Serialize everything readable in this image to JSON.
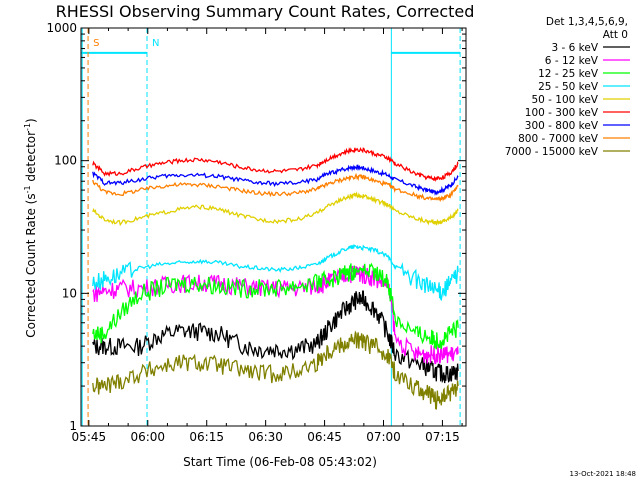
{
  "chart_data": {
    "type": "line",
    "title": "RHESSI Observing Summary Count Rates, Corrected",
    "xlabel": "Start Time (06-Feb-08 05:43:02)",
    "ylabel_main": "Corrected Count Rate (s",
    "ylabel_sup1": "-1",
    "ylabel_mid": " detector",
    "ylabel_sup2": "-1",
    "ylabel_end": ")",
    "y_scale": "log",
    "ylim": [
      1,
      1000
    ],
    "xlim_minutes": [
      0,
      98
    ],
    "x_ticks": [
      {
        "label": "05:45",
        "minute": 2
      },
      {
        "label": "06:00",
        "minute": 17
      },
      {
        "label": "06:15",
        "minute": 32
      },
      {
        "label": "06:30",
        "minute": 47
      },
      {
        "label": "06:45",
        "minute": 62
      },
      {
        "label": "07:00",
        "minute": 77
      },
      {
        "label": "07:15",
        "minute": 92
      }
    ],
    "y_ticks": [
      {
        "label": "1",
        "value": 1
      },
      {
        "label": "10",
        "value": 10
      },
      {
        "label": "100",
        "value": 100
      },
      {
        "label": "1000",
        "value": 1000
      }
    ],
    "legend": {
      "header1": "Det 1,3,4,5,6,9,",
      "header2": "Att 0",
      "placement": "right"
    },
    "markers": [
      {
        "label": "S",
        "minute": 1.8,
        "color": "#ff8000"
      },
      {
        "label": "N",
        "minute": 16.8,
        "color": "#00e5ff"
      }
    ],
    "night_bands": [
      {
        "start": 0,
        "end": 16.8,
        "level": 650
      },
      {
        "start": 79,
        "end": 96.5,
        "level": 650
      }
    ],
    "vertical_lines": [
      {
        "minute": 0.3,
        "color": "#00e5ff",
        "style": "solid"
      },
      {
        "minute": 16.8,
        "color": "#00e5ff",
        "style": "dashed"
      },
      {
        "minute": 79,
        "color": "#00e5ff",
        "style": "solid"
      },
      {
        "minute": 96.5,
        "color": "#00e5ff",
        "style": "dashed"
      },
      {
        "minute": 1.8,
        "color": "#ff8000",
        "style": "dashed"
      }
    ],
    "time_minutes": [
      3,
      6,
      10,
      15,
      20,
      25,
      30,
      35,
      40,
      45,
      50,
      55,
      60,
      62,
      65,
      68,
      70,
      72,
      75,
      78,
      80,
      85,
      88,
      90,
      92,
      94,
      96
    ],
    "series": [
      {
        "name": "3 - 6 keV",
        "color": "#000000",
        "values": [
          4.0,
          4.0,
          4.0,
          4.0,
          4.8,
          5.2,
          5.2,
          5.0,
          4.2,
          3.8,
          3.8,
          3.8,
          4.2,
          5.0,
          6.5,
          8.0,
          9.0,
          9.0,
          7.5,
          5.0,
          3.5,
          3.0,
          2.8,
          2.6,
          2.5,
          2.5,
          2.6
        ]
      },
      {
        "name": "6 - 12 keV",
        "color": "#ff00ff",
        "values": [
          10.0,
          10.5,
          11.0,
          11.0,
          11.5,
          12.0,
          12.0,
          12.0,
          11.5,
          11.0,
          11.0,
          11.0,
          11.5,
          12.0,
          13.0,
          14.0,
          14.5,
          14.0,
          13.0,
          12.0,
          4.5,
          3.5,
          3.5,
          3.5,
          3.5,
          3.5,
          3.5
        ]
      },
      {
        "name": "12 - 25 keV",
        "color": "#00ff00",
        "values": [
          5.0,
          5.0,
          7.0,
          10.0,
          11.0,
          12.0,
          12.0,
          11.5,
          11.0,
          11.0,
          11.0,
          11.5,
          12.0,
          12.5,
          13.5,
          14.5,
          15.0,
          15.0,
          14.0,
          12.5,
          6.5,
          5.0,
          4.8,
          4.5,
          4.5,
          5.0,
          5.5
        ]
      },
      {
        "name": "25 - 50 keV",
        "color": "#00e5ff",
        "values": [
          12.0,
          13.0,
          14.0,
          15.5,
          16.5,
          17.0,
          17.5,
          17.0,
          16.0,
          15.5,
          15.0,
          15.5,
          16.5,
          18.0,
          20.0,
          22.0,
          22.5,
          22.0,
          21.0,
          19.0,
          16.0,
          13.0,
          11.5,
          10.5,
          10.5,
          12.0,
          14.5
        ]
      },
      {
        "name": "50 - 100 keV",
        "color": "#e0d000",
        "values": [
          42.0,
          36.0,
          34.0,
          37.0,
          40.0,
          43.0,
          45.0,
          43.0,
          39.0,
          36.0,
          35.0,
          36.0,
          40.0,
          44.0,
          49.0,
          53.0,
          55.0,
          54.0,
          50.0,
          47.0,
          42.0,
          37.0,
          35.0,
          34.0,
          35.0,
          37.0,
          42.0
        ]
      },
      {
        "name": "100 - 300 keV",
        "color": "#ff0000",
        "values": [
          95.0,
          80.0,
          80.0,
          88.0,
          95.0,
          100.0,
          102.0,
          98.0,
          90.0,
          85.0,
          83.0,
          85.0,
          92.0,
          100.0,
          110.0,
          118.0,
          122.0,
          120.0,
          112.0,
          105.0,
          95.0,
          80.0,
          75.0,
          73.0,
          75.0,
          80.0,
          95.0
        ]
      },
      {
        "name": "300 - 800 keV",
        "color": "#0000ff",
        "values": [
          80.0,
          68.0,
          68.0,
          72.0,
          76.0,
          78.0,
          78.0,
          76.0,
          72.0,
          68.0,
          67.0,
          68.0,
          72.0,
          78.0,
          83.0,
          88.0,
          90.0,
          88.0,
          83.0,
          78.0,
          72.0,
          64.0,
          60.0,
          58.0,
          60.0,
          65.0,
          75.0
        ]
      },
      {
        "name": "800 - 7000 keV",
        "color": "#ff8000",
        "values": [
          70.0,
          58.0,
          56.0,
          60.0,
          64.0,
          66.0,
          66.0,
          64.0,
          60.0,
          57.0,
          56.0,
          57.0,
          61.0,
          65.0,
          70.0,
          74.0,
          76.0,
          75.0,
          70.0,
          66.0,
          61.0,
          55.0,
          52.0,
          51.0,
          52.0,
          55.0,
          64.0
        ]
      },
      {
        "name": "7000 - 15000 keV",
        "color": "#808000",
        "values": [
          2.0,
          2.0,
          2.2,
          2.5,
          2.8,
          3.0,
          3.0,
          2.9,
          2.7,
          2.5,
          2.5,
          2.6,
          3.0,
          3.5,
          4.0,
          4.3,
          4.5,
          4.3,
          4.0,
          3.5,
          2.5,
          2.0,
          1.8,
          1.6,
          1.6,
          1.8,
          2.0
        ]
      }
    ]
  },
  "timestamp": "13-Oct-2021 18:48"
}
